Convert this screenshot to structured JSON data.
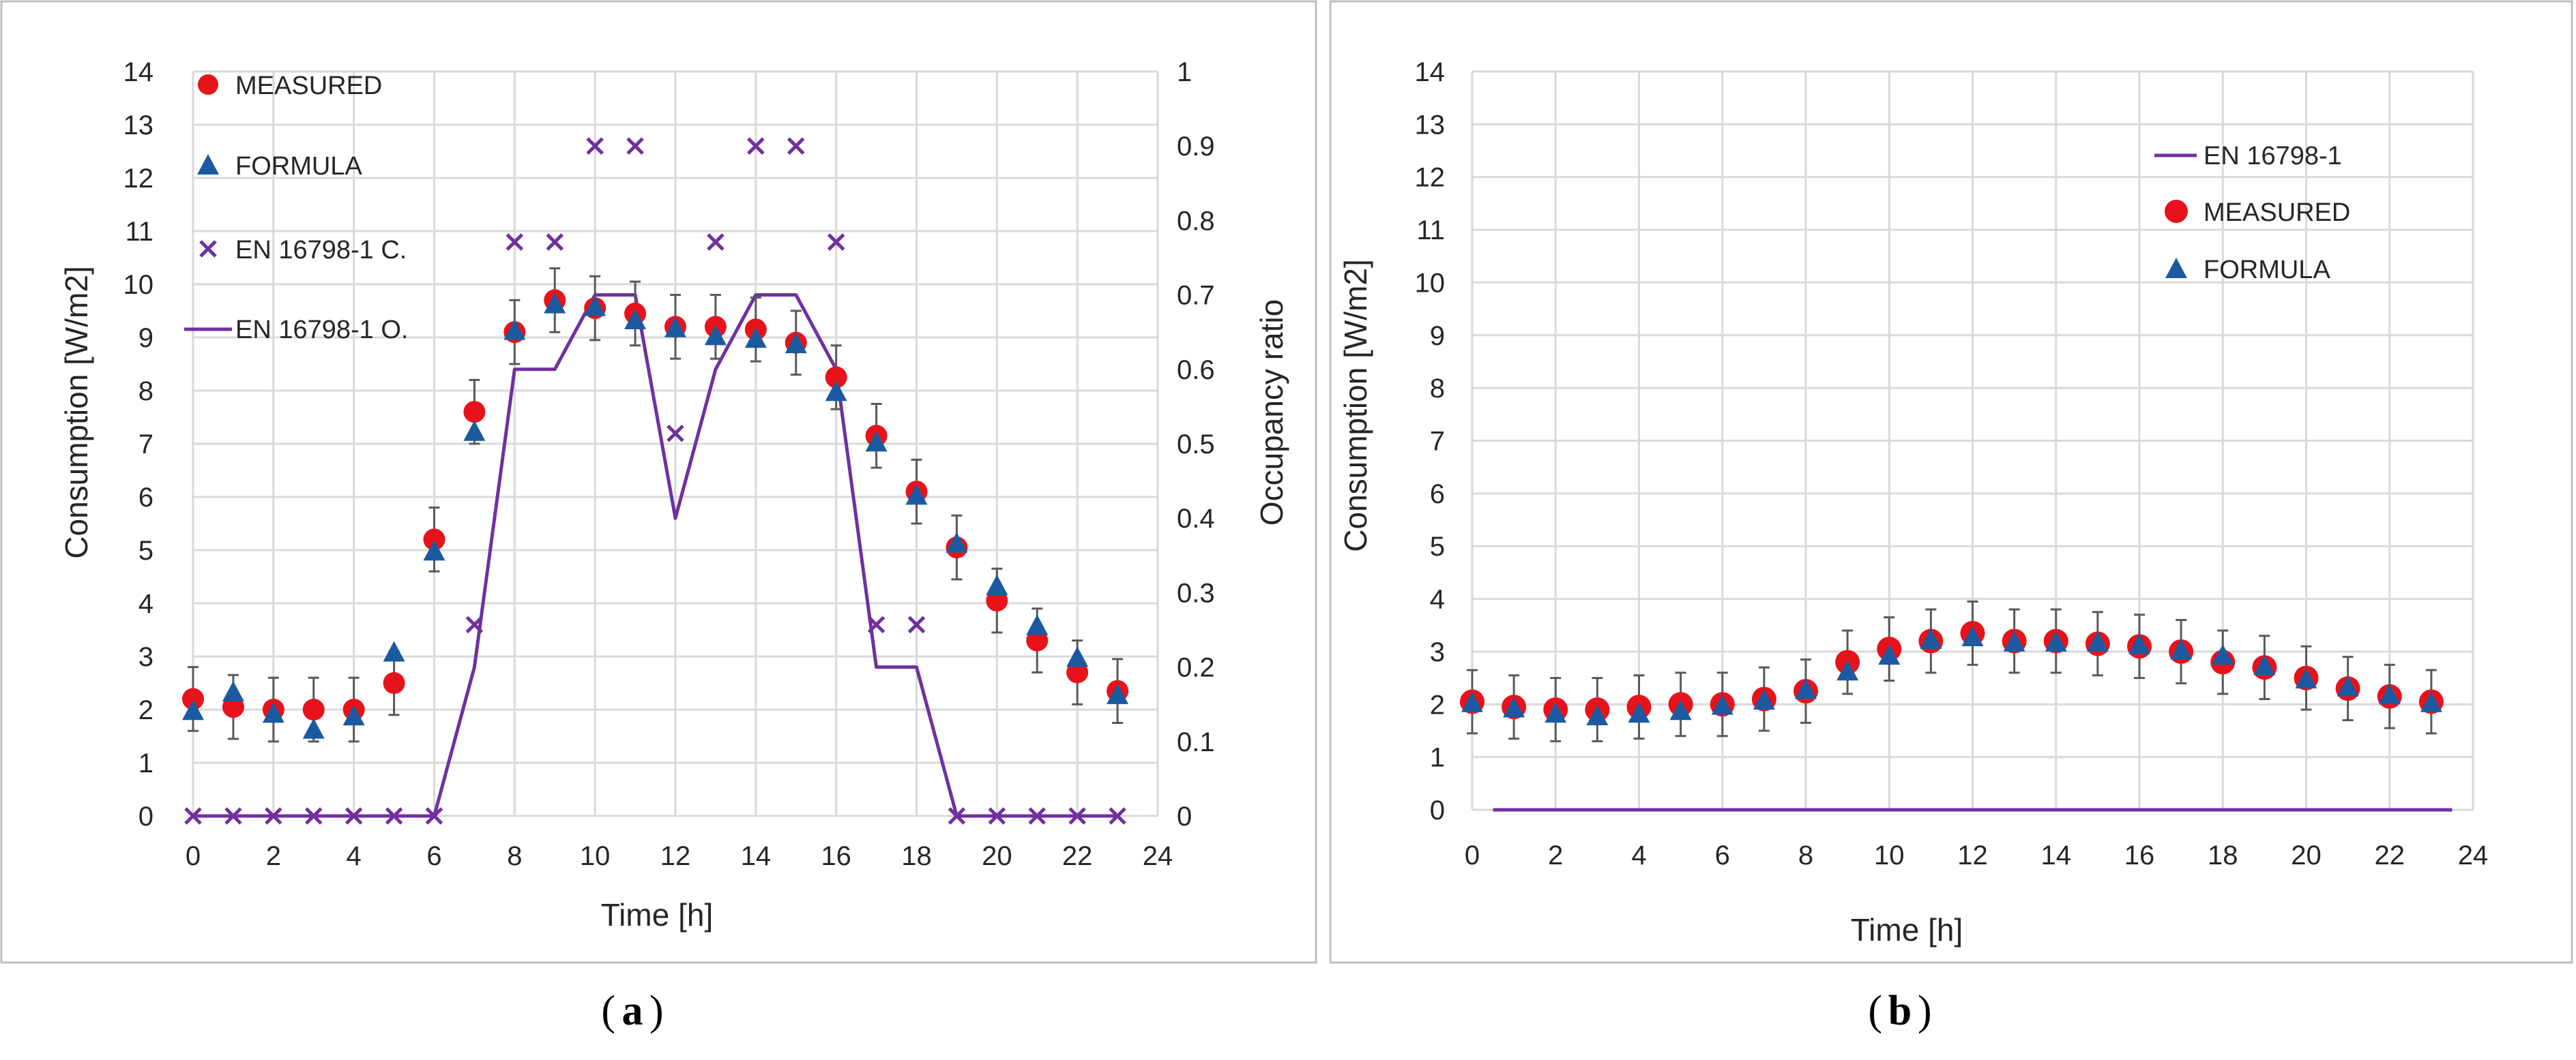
{
  "colors": {
    "measured": "#e8131a",
    "formula": "#1b5aa0",
    "en_cross": "#7030a0",
    "en_line": "#7030a0",
    "error_bar": "#595959"
  },
  "chart_data": [
    {
      "id": "a",
      "type": "scatter",
      "panel_label": "a",
      "xlabel": "Time [h]",
      "ylabel": "Consumption [W/m2]",
      "y2label": "Occupancy ratio",
      "xlim": [
        0,
        24
      ],
      "ylim": [
        0,
        14
      ],
      "y2lim": [
        0,
        1
      ],
      "xticks": [
        "0",
        "2",
        "4",
        "6",
        "8",
        "10",
        "12",
        "14",
        "16",
        "18",
        "20",
        "22",
        "24"
      ],
      "yticks": [
        "0",
        "1",
        "2",
        "3",
        "4",
        "5",
        "6",
        "7",
        "8",
        "9",
        "10",
        "11",
        "12",
        "13",
        "14"
      ],
      "y2ticks": [
        "0",
        "0.1",
        "0.2",
        "0.3",
        "0.4",
        "0.5",
        "0.6",
        "0.7",
        "0.8",
        "0.9",
        "1"
      ],
      "legend": {
        "measured": "MEASURED",
        "formula": "FORMULA",
        "en_cross": "EN 16798-1 C.",
        "en_line": "EN 16798-1 O."
      },
      "x": [
        0,
        1,
        2,
        3,
        4,
        5,
        6,
        7,
        8,
        9,
        10,
        11,
        12,
        13,
        14,
        15,
        16,
        17,
        18,
        19,
        20,
        21,
        22,
        23
      ],
      "series": [
        {
          "name": "MEASURED",
          "values": [
            2.2,
            2.05,
            2.0,
            2.0,
            2.0,
            2.5,
            5.2,
            7.6,
            9.1,
            9.7,
            9.55,
            9.45,
            9.2,
            9.2,
            9.15,
            8.9,
            8.25,
            7.15,
            6.1,
            5.05,
            4.05,
            3.3,
            2.7,
            2.35
          ],
          "error": [
            0.6,
            0.6,
            0.6,
            0.6,
            0.6,
            0.6,
            0.6,
            0.6,
            0.6,
            0.6,
            0.6,
            0.6,
            0.6,
            0.6,
            0.6,
            0.6,
            0.6,
            0.6,
            0.6,
            0.6,
            0.6,
            0.6,
            0.6,
            0.6
          ]
        },
        {
          "name": "FORMULA",
          "values": [
            1.95,
            2.3,
            1.9,
            1.6,
            1.85,
            3.05,
            4.95,
            7.2,
            9.1,
            9.6,
            9.55,
            9.3,
            9.15,
            9.0,
            8.95,
            8.85,
            7.95,
            7.0,
            6.0,
            5.1,
            4.3,
            3.55,
            2.95,
            2.25
          ]
        },
        {
          "name": "EN 16798-1 C.",
          "axis": "y2",
          "values": [
            0,
            0,
            0,
            0,
            0,
            0,
            0,
            0.257,
            0.771,
            0.771,
            0.9,
            0.9,
            0.514,
            0.771,
            0.9,
            0.9,
            0.771,
            0.257,
            0.257,
            0,
            0,
            0,
            0,
            0
          ]
        },
        {
          "name": "EN 16798-1 O.",
          "axis": "y2",
          "line_x": [
            0,
            6,
            7,
            8,
            9,
            10,
            11,
            12,
            13,
            14,
            15,
            16,
            17,
            18,
            19,
            23
          ],
          "line_y": [
            0,
            0,
            0.2,
            0.6,
            0.6,
            0.7,
            0.7,
            0.4,
            0.6,
            0.7,
            0.7,
            0.6,
            0.2,
            0.2,
            0,
            0
          ]
        }
      ]
    },
    {
      "id": "b",
      "type": "scatter",
      "panel_label": "b",
      "xlabel": "Time [h]",
      "ylabel": "Consumption [W/m2]",
      "xlim": [
        0,
        24
      ],
      "ylim": [
        0,
        14
      ],
      "xticks": [
        "0",
        "2",
        "4",
        "6",
        "8",
        "10",
        "12",
        "14",
        "16",
        "18",
        "20",
        "22",
        "24"
      ],
      "yticks": [
        "0",
        "1",
        "2",
        "3",
        "4",
        "5",
        "6",
        "7",
        "8",
        "9",
        "10",
        "11",
        "12",
        "13",
        "14"
      ],
      "legend": {
        "en_line": "EN 16798-1",
        "measured": "MEASURED",
        "formula": "FORMULA"
      },
      "x": [
        0,
        1,
        2,
        3,
        4,
        5,
        6,
        7,
        8,
        9,
        10,
        11,
        12,
        13,
        14,
        15,
        16,
        17,
        18,
        19,
        20,
        21,
        22,
        23
      ],
      "series": [
        {
          "name": "MEASURED",
          "values": [
            2.05,
            1.95,
            1.9,
            1.9,
            1.95,
            2.0,
            2.0,
            2.1,
            2.25,
            2.8,
            3.05,
            3.2,
            3.35,
            3.2,
            3.2,
            3.15,
            3.1,
            3.0,
            2.8,
            2.7,
            2.5,
            2.3,
            2.15,
            2.05
          ],
          "error": [
            0.6,
            0.6,
            0.6,
            0.6,
            0.6,
            0.6,
            0.6,
            0.6,
            0.6,
            0.6,
            0.6,
            0.6,
            0.6,
            0.6,
            0.6,
            0.6,
            0.6,
            0.6,
            0.6,
            0.6,
            0.6,
            0.6,
            0.6,
            0.6
          ]
        },
        {
          "name": "FORMULA",
          "values": [
            2.0,
            1.9,
            1.8,
            1.75,
            1.8,
            1.85,
            1.95,
            2.05,
            2.25,
            2.6,
            2.9,
            3.2,
            3.25,
            3.15,
            3.15,
            3.15,
            3.1,
            3.0,
            2.9,
            2.7,
            2.45,
            2.3,
            2.15,
            2.0
          ]
        },
        {
          "name": "EN 16798-1",
          "line_x": [
            0.5,
            23.5
          ],
          "line_y": [
            0,
            0
          ]
        }
      ]
    }
  ]
}
